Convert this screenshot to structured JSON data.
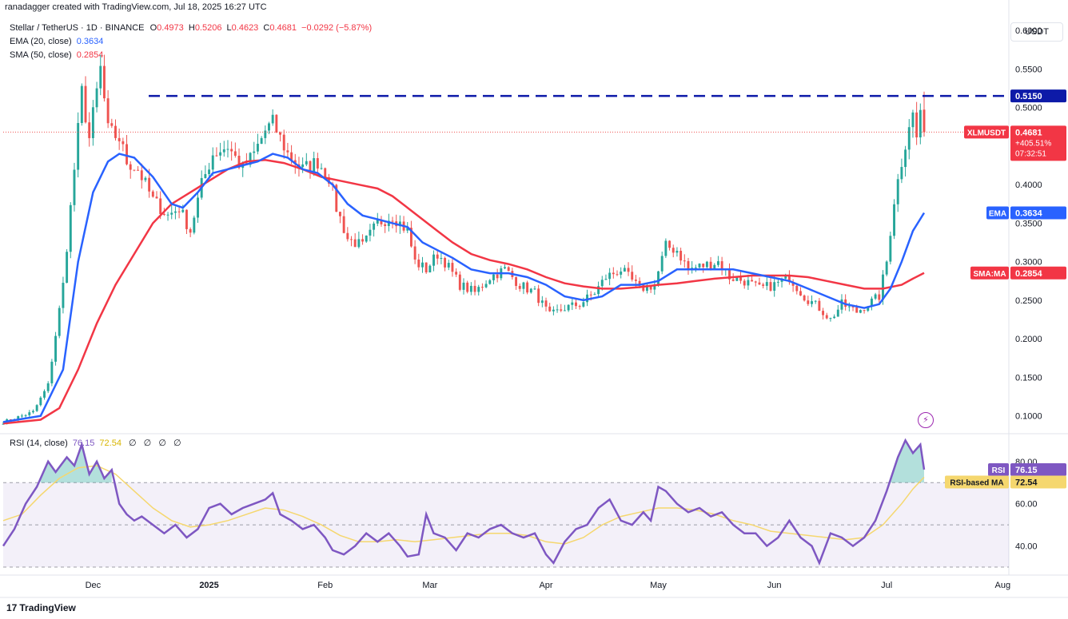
{
  "header": {
    "credit": "ranadagger created with TradingView.com, Jul 18, 2025 16:27 UTC",
    "symbol_line": "Stellar / TetherUS · 1D · BINANCE",
    "ohlc": {
      "o_label": "O",
      "o": "0.4973",
      "h_label": "H",
      "h": "0.5206",
      "l_label": "L",
      "l": "0.4623",
      "c_label": "C",
      "c": "0.4681",
      "change": "−0.0292 (−5.87%)"
    },
    "ema_label": "EMA (20, close)",
    "ema_value": "0.3634",
    "sma_label": "SMA (50, close)",
    "sma_value": "0.2854",
    "rsi_label": "RSI (14, close)",
    "rsi_value": "76.15",
    "rsi_ma_value": "72.54",
    "rsi_extra": [
      "∅",
      "∅",
      "∅",
      "∅"
    ]
  },
  "currency_button": "USDT",
  "brand": {
    "logo": "17",
    "name": "TradingView"
  },
  "colors": {
    "up": "#26a69a",
    "down": "#ef5350",
    "ema": "#2962ff",
    "sma": "#f23645",
    "rsi": "#7e57c2",
    "rsi_ma": "#f5d76e",
    "level": "#0d1aa8"
  },
  "price_axis": {
    "ticks": [
      "0.6000",
      "0.5500",
      "0.5000",
      "0.4000",
      "0.3500",
      "0.3000",
      "0.2500",
      "0.2000",
      "0.1500",
      "0.1000"
    ],
    "tick_values": [
      0.6,
      0.55,
      0.5,
      0.4,
      0.35,
      0.3,
      0.25,
      0.2,
      0.15,
      0.1
    ],
    "ylim": [
      0.08,
      0.625
    ]
  },
  "rsi_axis": {
    "ticks": [
      "80.00",
      "60.00",
      "40.00"
    ],
    "tick_values": [
      80,
      60,
      40
    ],
    "ylim": [
      27,
      92
    ]
  },
  "time_axis": {
    "labels": [
      "Dec",
      "2025",
      "Feb",
      "Mar",
      "Apr",
      "May",
      "Jun",
      "Jul",
      "Aug"
    ],
    "label_index": [
      24,
      55,
      86,
      114,
      145,
      175,
      206,
      236,
      267
    ],
    "total_slots": 282
  },
  "price_tags": {
    "level": {
      "value": 0.515,
      "label": "0.5150"
    },
    "last": {
      "name": "XLMUSDT",
      "value": 0.4681,
      "label": "0.4681",
      "change": "+405.51%",
      "countdown": "07:32:51"
    },
    "ema": {
      "name": "EMA",
      "value": 0.3634,
      "label": "0.3634"
    },
    "sma": {
      "name": "SMA:MA",
      "value": 0.2854,
      "label": "0.2854"
    }
  },
  "rsi_tags": {
    "rsi": {
      "name": "RSI",
      "value": 76.15,
      "label": "76.15"
    },
    "ma": {
      "name": "RSI-based MA",
      "value": 72.54,
      "label": "72.54"
    }
  },
  "chart_data": {
    "type": "candlestick",
    "symbol": "XLMUSDT",
    "anchors": [
      [
        0,
        0.092
      ],
      [
        8,
        0.105
      ],
      [
        12,
        0.14
      ],
      [
        16,
        0.27
      ],
      [
        19,
        0.42
      ],
      [
        21,
        0.52
      ],
      [
        23,
        0.46
      ],
      [
        26,
        0.55
      ],
      [
        28,
        0.47
      ],
      [
        31,
        0.46
      ],
      [
        33,
        0.43
      ],
      [
        36,
        0.42
      ],
      [
        40,
        0.38
      ],
      [
        44,
        0.36
      ],
      [
        47,
        0.37
      ],
      [
        50,
        0.34
      ],
      [
        53,
        0.4
      ],
      [
        56,
        0.44
      ],
      [
        60,
        0.45
      ],
      [
        64,
        0.42
      ],
      [
        67,
        0.44
      ],
      [
        70,
        0.47
      ],
      [
        72,
        0.48
      ],
      [
        76,
        0.44
      ],
      [
        80,
        0.42
      ],
      [
        84,
        0.43
      ],
      [
        87,
        0.41
      ],
      [
        89,
        0.37
      ],
      [
        92,
        0.33
      ],
      [
        96,
        0.32
      ],
      [
        100,
        0.35
      ],
      [
        104,
        0.36
      ],
      [
        108,
        0.34
      ],
      [
        110,
        0.3
      ],
      [
        113,
        0.29
      ],
      [
        116,
        0.31
      ],
      [
        118,
        0.3
      ],
      [
        122,
        0.27
      ],
      [
        126,
        0.26
      ],
      [
        130,
        0.28
      ],
      [
        134,
        0.29
      ],
      [
        138,
        0.27
      ],
      [
        142,
        0.26
      ],
      [
        146,
        0.23
      ],
      [
        150,
        0.24
      ],
      [
        154,
        0.245
      ],
      [
        158,
        0.26
      ],
      [
        161,
        0.28
      ],
      [
        165,
        0.29
      ],
      [
        170,
        0.265
      ],
      [
        174,
        0.27
      ],
      [
        177,
        0.32
      ],
      [
        180,
        0.315
      ],
      [
        183,
        0.29
      ],
      [
        187,
        0.295
      ],
      [
        191,
        0.3
      ],
      [
        194,
        0.28
      ],
      [
        198,
        0.275
      ],
      [
        202,
        0.265
      ],
      [
        206,
        0.27
      ],
      [
        210,
        0.28
      ],
      [
        214,
        0.255
      ],
      [
        218,
        0.24
      ],
      [
        221,
        0.225
      ],
      [
        224,
        0.245
      ],
      [
        228,
        0.235
      ],
      [
        231,
        0.245
      ],
      [
        234,
        0.255
      ],
      [
        236,
        0.3
      ],
      [
        238,
        0.38
      ],
      [
        240,
        0.43
      ],
      [
        242,
        0.48
      ],
      [
        243,
        0.49
      ],
      [
        244,
        0.46
      ],
      [
        245,
        0.4973
      ],
      [
        246,
        0.4681
      ]
    ],
    "ema_20": [
      [
        0,
        0.092
      ],
      [
        10,
        0.1
      ],
      [
        16,
        0.16
      ],
      [
        20,
        0.3
      ],
      [
        24,
        0.39
      ],
      [
        28,
        0.43
      ],
      [
        31,
        0.44
      ],
      [
        35,
        0.435
      ],
      [
        40,
        0.41
      ],
      [
        45,
        0.375
      ],
      [
        48,
        0.37
      ],
      [
        52,
        0.39
      ],
      [
        56,
        0.415
      ],
      [
        60,
        0.42
      ],
      [
        64,
        0.425
      ],
      [
        68,
        0.43
      ],
      [
        72,
        0.44
      ],
      [
        76,
        0.435
      ],
      [
        80,
        0.42
      ],
      [
        84,
        0.415
      ],
      [
        88,
        0.4
      ],
      [
        92,
        0.375
      ],
      [
        96,
        0.36
      ],
      [
        100,
        0.355
      ],
      [
        104,
        0.35
      ],
      [
        108,
        0.345
      ],
      [
        112,
        0.325
      ],
      [
        116,
        0.315
      ],
      [
        120,
        0.305
      ],
      [
        125,
        0.29
      ],
      [
        130,
        0.285
      ],
      [
        135,
        0.285
      ],
      [
        140,
        0.28
      ],
      [
        145,
        0.27
      ],
      [
        150,
        0.255
      ],
      [
        155,
        0.25
      ],
      [
        160,
        0.255
      ],
      [
        165,
        0.27
      ],
      [
        170,
        0.27
      ],
      [
        175,
        0.275
      ],
      [
        180,
        0.29
      ],
      [
        185,
        0.29
      ],
      [
        190,
        0.29
      ],
      [
        195,
        0.29
      ],
      [
        200,
        0.285
      ],
      [
        205,
        0.28
      ],
      [
        210,
        0.275
      ],
      [
        215,
        0.265
      ],
      [
        220,
        0.255
      ],
      [
        225,
        0.245
      ],
      [
        230,
        0.24
      ],
      [
        234,
        0.245
      ],
      [
        237,
        0.265
      ],
      [
        240,
        0.3
      ],
      [
        243,
        0.34
      ],
      [
        246,
        0.3634
      ]
    ],
    "sma_50": [
      [
        0,
        0.09
      ],
      [
        10,
        0.095
      ],
      [
        15,
        0.11
      ],
      [
        20,
        0.16
      ],
      [
        25,
        0.22
      ],
      [
        30,
        0.27
      ],
      [
        35,
        0.31
      ],
      [
        40,
        0.35
      ],
      [
        45,
        0.375
      ],
      [
        50,
        0.39
      ],
      [
        55,
        0.405
      ],
      [
        60,
        0.42
      ],
      [
        65,
        0.43
      ],
      [
        70,
        0.432
      ],
      [
        75,
        0.428
      ],
      [
        80,
        0.42
      ],
      [
        85,
        0.41
      ],
      [
        90,
        0.405
      ],
      [
        95,
        0.4
      ],
      [
        100,
        0.395
      ],
      [
        104,
        0.385
      ],
      [
        108,
        0.37
      ],
      [
        112,
        0.355
      ],
      [
        116,
        0.34
      ],
      [
        120,
        0.325
      ],
      [
        125,
        0.31
      ],
      [
        130,
        0.302
      ],
      [
        135,
        0.297
      ],
      [
        140,
        0.29
      ],
      [
        145,
        0.28
      ],
      [
        150,
        0.272
      ],
      [
        155,
        0.268
      ],
      [
        160,
        0.265
      ],
      [
        165,
        0.265
      ],
      [
        170,
        0.267
      ],
      [
        175,
        0.27
      ],
      [
        180,
        0.272
      ],
      [
        185,
        0.275
      ],
      [
        190,
        0.278
      ],
      [
        195,
        0.28
      ],
      [
        200,
        0.282
      ],
      [
        205,
        0.282
      ],
      [
        210,
        0.282
      ],
      [
        215,
        0.28
      ],
      [
        220,
        0.275
      ],
      [
        225,
        0.27
      ],
      [
        230,
        0.265
      ],
      [
        235,
        0.265
      ],
      [
        240,
        0.27
      ],
      [
        243,
        0.278
      ],
      [
        246,
        0.2854
      ]
    ],
    "rsi_14": [
      [
        0,
        40
      ],
      [
        3,
        48
      ],
      [
        6,
        60
      ],
      [
        9,
        68
      ],
      [
        12,
        80
      ],
      [
        14,
        75
      ],
      [
        17,
        82
      ],
      [
        19,
        78
      ],
      [
        21,
        88
      ],
      [
        23,
        74
      ],
      [
        25,
        80
      ],
      [
        27,
        72
      ],
      [
        29,
        76
      ],
      [
        31,
        60
      ],
      [
        33,
        55
      ],
      [
        35,
        52
      ],
      [
        37,
        54
      ],
      [
        40,
        50
      ],
      [
        43,
        46
      ],
      [
        46,
        50
      ],
      [
        49,
        44
      ],
      [
        52,
        48
      ],
      [
        55,
        58
      ],
      [
        58,
        60
      ],
      [
        61,
        55
      ],
      [
        64,
        58
      ],
      [
        67,
        60
      ],
      [
        70,
        62
      ],
      [
        72,
        65
      ],
      [
        74,
        55
      ],
      [
        77,
        52
      ],
      [
        80,
        48
      ],
      [
        83,
        50
      ],
      [
        86,
        44
      ],
      [
        88,
        38
      ],
      [
        91,
        36
      ],
      [
        94,
        40
      ],
      [
        97,
        46
      ],
      [
        100,
        42
      ],
      [
        103,
        46
      ],
      [
        106,
        40
      ],
      [
        108,
        35
      ],
      [
        111,
        36
      ],
      [
        113,
        55
      ],
      [
        115,
        46
      ],
      [
        118,
        44
      ],
      [
        121,
        38
      ],
      [
        124,
        46
      ],
      [
        127,
        44
      ],
      [
        130,
        48
      ],
      [
        133,
        50
      ],
      [
        136,
        46
      ],
      [
        139,
        44
      ],
      [
        142,
        46
      ],
      [
        145,
        36
      ],
      [
        147,
        32
      ],
      [
        150,
        42
      ],
      [
        153,
        48
      ],
      [
        156,
        50
      ],
      [
        159,
        58
      ],
      [
        162,
        62
      ],
      [
        165,
        52
      ],
      [
        168,
        50
      ],
      [
        171,
        56
      ],
      [
        173,
        52
      ],
      [
        175,
        68
      ],
      [
        177,
        66
      ],
      [
        180,
        60
      ],
      [
        183,
        56
      ],
      [
        186,
        58
      ],
      [
        189,
        54
      ],
      [
        192,
        56
      ],
      [
        195,
        50
      ],
      [
        198,
        46
      ],
      [
        201,
        46
      ],
      [
        204,
        40
      ],
      [
        207,
        44
      ],
      [
        210,
        52
      ],
      [
        213,
        44
      ],
      [
        216,
        40
      ],
      [
        218,
        32
      ],
      [
        221,
        46
      ],
      [
        224,
        44
      ],
      [
        227,
        40
      ],
      [
        230,
        44
      ],
      [
        233,
        52
      ],
      [
        236,
        66
      ],
      [
        239,
        82
      ],
      [
        241,
        90
      ],
      [
        243,
        84
      ],
      [
        245,
        88
      ],
      [
        246,
        76.15
      ]
    ],
    "rsi_ma": [
      [
        0,
        52
      ],
      [
        5,
        55
      ],
      [
        10,
        64
      ],
      [
        15,
        72
      ],
      [
        20,
        77
      ],
      [
        25,
        78
      ],
      [
        30,
        74
      ],
      [
        35,
        66
      ],
      [
        40,
        58
      ],
      [
        45,
        52
      ],
      [
        50,
        49
      ],
      [
        55,
        50
      ],
      [
        60,
        52
      ],
      [
        65,
        55
      ],
      [
        70,
        58
      ],
      [
        75,
        57
      ],
      [
        80,
        54
      ],
      [
        85,
        50
      ],
      [
        90,
        45
      ],
      [
        95,
        42
      ],
      [
        100,
        42
      ],
      [
        105,
        43
      ],
      [
        110,
        42
      ],
      [
        115,
        43
      ],
      [
        120,
        44
      ],
      [
        125,
        45
      ],
      [
        130,
        46
      ],
      [
        135,
        46
      ],
      [
        140,
        45
      ],
      [
        145,
        42
      ],
      [
        150,
        41
      ],
      [
        155,
        44
      ],
      [
        160,
        50
      ],
      [
        165,
        54
      ],
      [
        170,
        56
      ],
      [
        175,
        58
      ],
      [
        180,
        58
      ],
      [
        185,
        57
      ],
      [
        190,
        55
      ],
      [
        195,
        52
      ],
      [
        200,
        50
      ],
      [
        205,
        47
      ],
      [
        210,
        46
      ],
      [
        215,
        45
      ],
      [
        220,
        44
      ],
      [
        225,
        43
      ],
      [
        230,
        44
      ],
      [
        235,
        50
      ],
      [
        240,
        60
      ],
      [
        243,
        67
      ],
      [
        246,
        72.54
      ]
    ],
    "rsi_levels": [
      70,
      50,
      30
    ]
  }
}
